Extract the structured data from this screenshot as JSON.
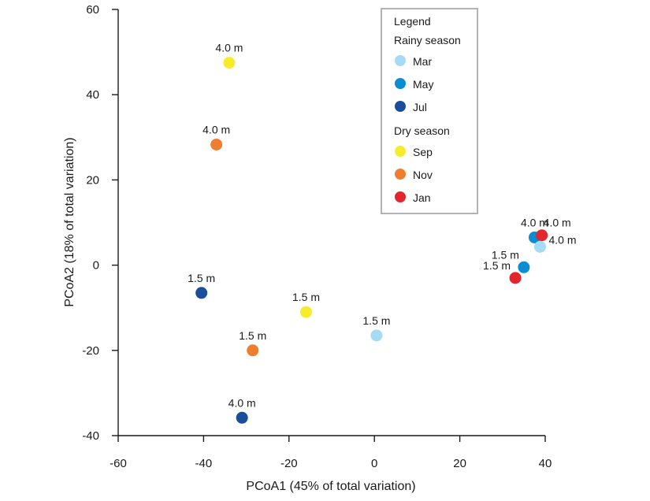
{
  "chart_data": {
    "type": "scatter",
    "xlabel": "PCoA1 (45% of total variation)",
    "ylabel": "PCoA2 (18% of total variation)",
    "xlim": [
      -60,
      40
    ],
    "ylim": [
      -40,
      60
    ],
    "xticks": [
      -60,
      -40,
      -20,
      0,
      20,
      40
    ],
    "yticks": [
      -40,
      -20,
      0,
      20,
      40,
      60
    ],
    "grid": false,
    "legend": {
      "title": "Legend",
      "placement": "top-right",
      "groups": [
        {
          "name": "Rainy  season",
          "entries": [
            {
              "label": "Mar",
              "color": "#a5dbf5"
            },
            {
              "label": "May",
              "color": "#0a8ed2"
            },
            {
              "label": "Jul",
              "color": "#1a4d9c"
            }
          ]
        },
        {
          "name": "Dry  season",
          "entries": [
            {
              "label": "Sep",
              "color": "#f7ec2a"
            },
            {
              "label": "Nov",
              "color": "#ef7d2f"
            },
            {
              "label": "Jan",
              "color": "#e3262e"
            }
          ]
        }
      ]
    },
    "points": [
      {
        "month": "Sep",
        "label": "4.0 m",
        "x": -34,
        "y": 47.5,
        "color": "#f7ec2a",
        "label_pos": "above"
      },
      {
        "month": "Nov",
        "label": "4.0 m",
        "x": -37,
        "y": 28.3,
        "color": "#ef7d2f",
        "label_pos": "above"
      },
      {
        "month": "Jul",
        "label": "1.5 m",
        "x": -40.5,
        "y": -6.5,
        "color": "#1a4d9c",
        "label_pos": "above"
      },
      {
        "month": "Sep",
        "label": "1.5 m",
        "x": -16,
        "y": -11,
        "color": "#f7ec2a",
        "label_pos": "above"
      },
      {
        "month": "Nov",
        "label": "1.5 m",
        "x": -28.5,
        "y": -20,
        "color": "#ef7d2f",
        "label_pos": "above"
      },
      {
        "month": "Mar",
        "label": "1.5 m",
        "x": 0.5,
        "y": -16.5,
        "color": "#a5dbf5",
        "label_pos": "above"
      },
      {
        "month": "Jul",
        "label": "4.0 m",
        "x": -31,
        "y": -35.8,
        "color": "#1a4d9c",
        "label_pos": "above"
      },
      {
        "month": "May",
        "label": "4.0 m",
        "x": 37.5,
        "y": 6.5,
        "color": "#0a8ed2",
        "label_pos": "above"
      },
      {
        "month": "Jan",
        "label": "4.0 m",
        "x": 39.2,
        "y": 7,
        "color": "#e3262e",
        "label_pos": "above-right"
      },
      {
        "month": "Mar",
        "label": "4.0 m",
        "x": 38.8,
        "y": 4.3,
        "color": "#a5dbf5",
        "label_pos": "right"
      },
      {
        "month": "May",
        "label": "1.5 m",
        "x": 35,
        "y": -0.5,
        "color": "#0a8ed2",
        "label_pos": "above-left"
      },
      {
        "month": "Jan",
        "label": "1.5 m",
        "x": 33,
        "y": -3,
        "color": "#e3262e",
        "label_pos": "above-left"
      }
    ]
  }
}
